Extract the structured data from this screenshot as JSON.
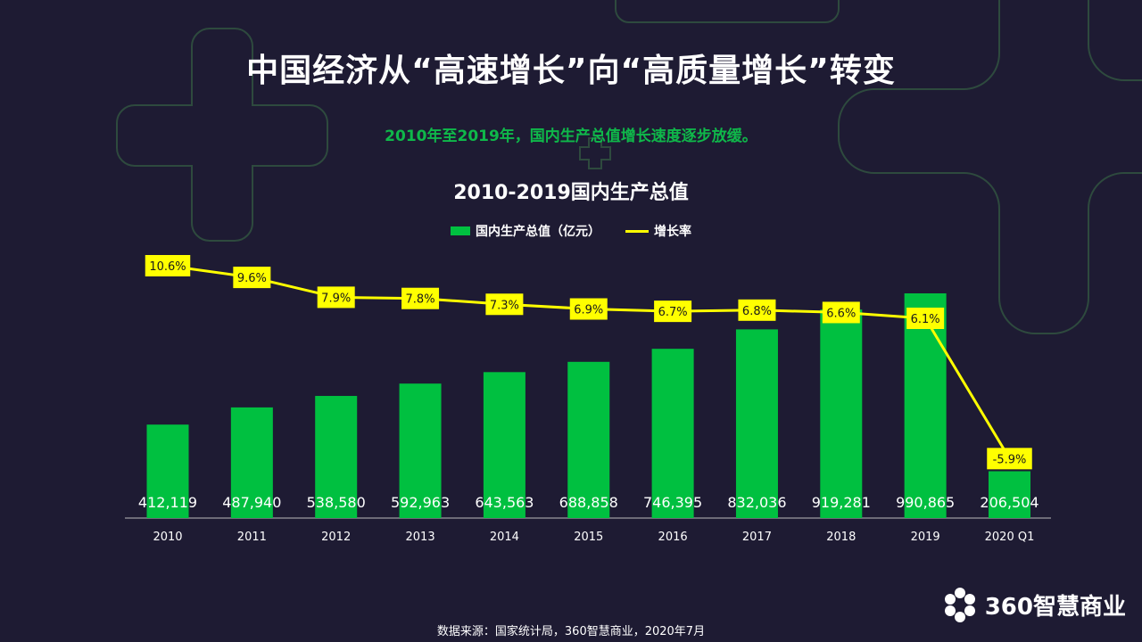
{
  "header": {
    "title": "中国经济从“高速增长”向“高质量增长”转变",
    "subtitle": "2010年至2019年，国内生产总值增长速度逐步放缓。"
  },
  "chart_data": {
    "type": "bar",
    "title": "2010-2019国内生产总值",
    "categories": [
      "2010",
      "2011",
      "2012",
      "2013",
      "2014",
      "2015",
      "2016",
      "2017",
      "2018",
      "2019",
      "2020 Q1"
    ],
    "series": [
      {
        "name": "国内生产总值（亿元）",
        "type": "bar",
        "color": "#00c040",
        "values": [
          412119,
          487940,
          538580,
          592963,
          643563,
          688858,
          746395,
          832036,
          919281,
          990865,
          206504
        ],
        "labels": [
          "412,119",
          "487,940",
          "538,580",
          "592,963",
          "643,563",
          "688,858",
          "746,395",
          "832,036",
          "919,281",
          "990,865",
          "206,504"
        ]
      },
      {
        "name": "增长率",
        "type": "line",
        "color": "#ffff00",
        "values": [
          10.6,
          9.6,
          7.9,
          7.8,
          7.3,
          6.9,
          6.7,
          6.8,
          6.6,
          6.1,
          -5.9
        ],
        "labels": [
          "10.6%",
          "9.6%",
          "7.9%",
          "7.8%",
          "7.3%",
          "6.9%",
          "6.7%",
          "6.8%",
          "6.6%",
          "6.1%",
          "-5.9%"
        ]
      }
    ],
    "ylim_bar": [
      0,
      1050000
    ],
    "ylim_line": [
      -8,
      11
    ],
    "legend_position": "top-center",
    "grid": false
  },
  "footer": {
    "source": "数据来源：国家统计局，360智慧商业，2020年7月",
    "brand": "360智慧商业"
  },
  "colors": {
    "background": "#1e1b33",
    "accent_green": "#00c040",
    "line_yellow": "#ffff00"
  }
}
